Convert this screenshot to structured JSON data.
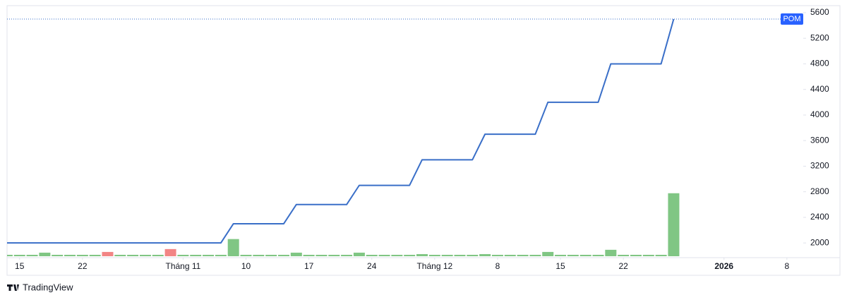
{
  "chart_data": {
    "type": "line",
    "x": [
      0,
      1,
      2,
      3,
      4,
      5,
      6,
      7,
      8,
      9,
      10,
      11,
      12,
      13,
      14,
      15,
      16,
      17,
      18,
      19,
      20,
      21,
      22,
      23,
      24,
      25,
      26,
      27,
      28,
      29,
      30,
      31,
      32,
      33,
      34,
      35,
      36,
      37,
      38,
      39,
      40,
      41,
      42,
      43,
      44,
      45,
      46,
      47,
      48,
      49,
      50,
      51,
      52,
      53
    ],
    "xlim": [
      -0.5,
      63.3
    ],
    "xticks": [
      {
        "value": 1,
        "label": "15"
      },
      {
        "value": 6,
        "label": "22"
      },
      {
        "value": 14,
        "label": "Tháng 11"
      },
      {
        "value": 19,
        "label": "10"
      },
      {
        "value": 24,
        "label": "17"
      },
      {
        "value": 29,
        "label": "24"
      },
      {
        "value": 34,
        "label": "Tháng 12"
      },
      {
        "value": 39,
        "label": "8"
      },
      {
        "value": 44,
        "label": "15"
      },
      {
        "value": 49,
        "label": "22"
      },
      {
        "value": 57,
        "label": "2026",
        "bold": true
      },
      {
        "value": 62,
        "label": "8"
      }
    ],
    "ylim": [
      1770,
      5710
    ],
    "yticks": [
      2000,
      2400,
      2800,
      3200,
      3600,
      4000,
      4400,
      4800,
      5200,
      5600
    ],
    "grid": false,
    "last_value_line": true,
    "series": [
      {
        "name": "POM",
        "color": "#3a6fc8",
        "values": [
          2000,
          2000,
          2000,
          2000,
          2000,
          2000,
          2000,
          2000,
          2000,
          2000,
          2000,
          2000,
          2000,
          2000,
          2000,
          2000,
          2000,
          2000,
          2300,
          2300,
          2300,
          2300,
          2300,
          2600,
          2600,
          2600,
          2600,
          2600,
          2900,
          2900,
          2900,
          2900,
          2900,
          3300,
          3300,
          3300,
          3300,
          3300,
          3700,
          3700,
          3700,
          3700,
          3700,
          4200,
          4200,
          4200,
          4200,
          4200,
          4800,
          4800,
          4800,
          4800,
          4800,
          5500
        ]
      }
    ],
    "volume": {
      "values": [
        2,
        2,
        2,
        5,
        2,
        2,
        2,
        2,
        6,
        2,
        2,
        2,
        2,
        10,
        2,
        2,
        2,
        2,
        24,
        2,
        2,
        2,
        2,
        5,
        2,
        2,
        2,
        2,
        5,
        2,
        2,
        2,
        2,
        3,
        2,
        2,
        2,
        2,
        3,
        2,
        2,
        2,
        2,
        6,
        2,
        2,
        2,
        2,
        9,
        2,
        2,
        2,
        2,
        88
      ],
      "colors": [
        "#80c684",
        "#80c684",
        "#80c684",
        "#80c684",
        "#80c684",
        "#80c684",
        "#80c684",
        "#80c684",
        "#f28585",
        "#80c684",
        "#80c684",
        "#80c684",
        "#80c684",
        "#f28585",
        "#80c684",
        "#80c684",
        "#80c684",
        "#80c684",
        "#80c684",
        "#80c684",
        "#80c684",
        "#80c684",
        "#80c684",
        "#80c684",
        "#80c684",
        "#80c684",
        "#80c684",
        "#80c684",
        "#80c684",
        "#80c684",
        "#80c684",
        "#80c684",
        "#80c684",
        "#80c684",
        "#80c684",
        "#80c684",
        "#80c684",
        "#80c684",
        "#80c684",
        "#80c684",
        "#80c684",
        "#80c684",
        "#80c684",
        "#80c684",
        "#80c684",
        "#80c684",
        "#80c684",
        "#80c684",
        "#80c684",
        "#80c684",
        "#80c684",
        "#80c684",
        "#80c684",
        "#80c684"
      ]
    },
    "branding": "TradingView"
  }
}
